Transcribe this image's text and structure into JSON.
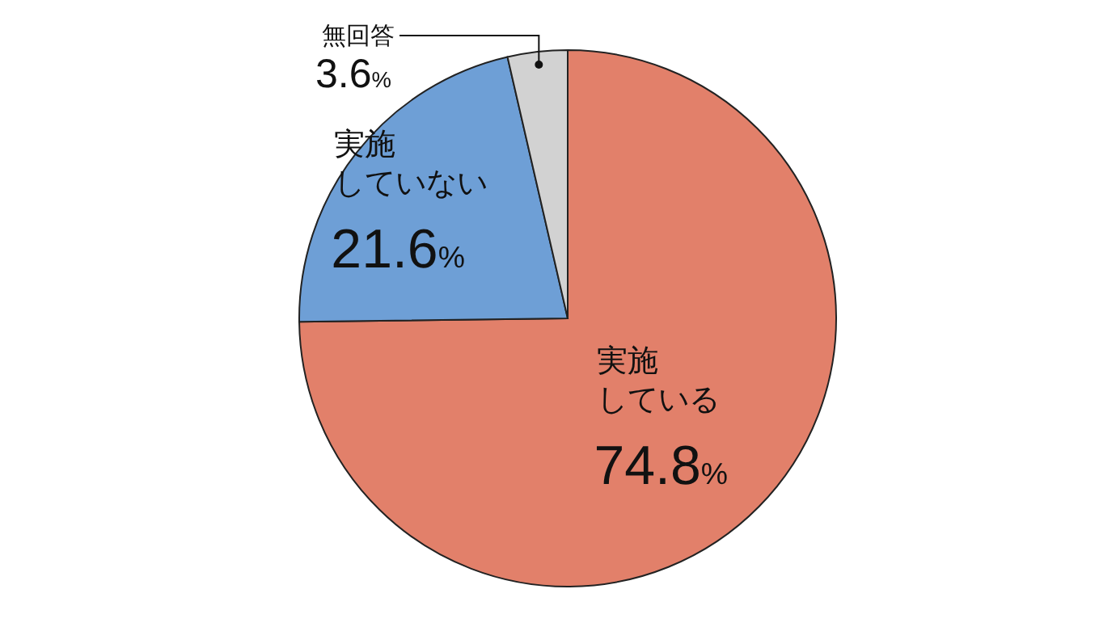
{
  "chart_data": {
    "type": "pie",
    "categories": [
      "実施している",
      "実施していない",
      "無回答"
    ],
    "values": [
      74.8,
      21.6,
      3.6
    ],
    "colors": [
      "#e2806a",
      "#6e9fd6",
      "#d2d2d2"
    ],
    "value_labels": [
      "74.8%",
      "21.6%",
      "3.6%"
    ]
  }
}
